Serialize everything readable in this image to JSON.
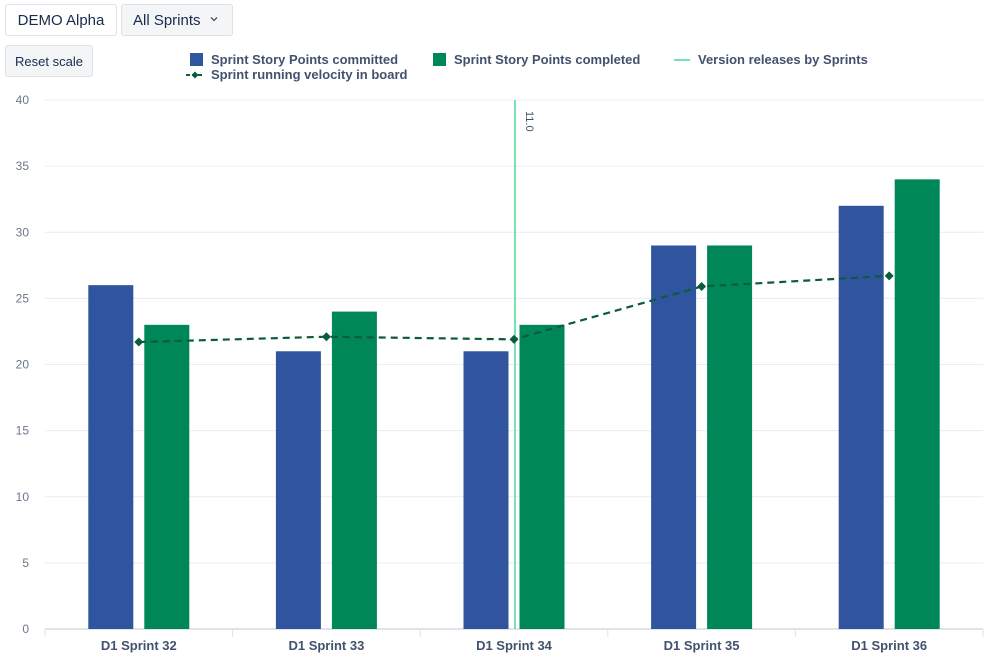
{
  "toolbar": {
    "board_label": "DEMO Alpha",
    "sprint_select_value": "All Sprints",
    "reset_label": "Reset scale"
  },
  "colors": {
    "committed": "#30559e",
    "completed": "#008758",
    "velocity": "#0b5b3f",
    "release": "#79e2b2"
  },
  "legend": [
    {
      "label": "Sprint Story Points committed",
      "kind": "square",
      "color": "#30559e"
    },
    {
      "label": "Sprint Story Points completed",
      "kind": "square",
      "color": "#008758"
    },
    {
      "label": "Version releases by Sprints",
      "kind": "line",
      "color": "#79e2b2"
    },
    {
      "label": "Sprint running velocity in board",
      "kind": "dashed-diamond",
      "color": "#0b5b3f"
    }
  ],
  "chart_data": {
    "type": "bar",
    "categories": [
      "D1 Sprint 32",
      "D1 Sprint 33",
      "D1 Sprint 34",
      "D1 Sprint 35",
      "D1 Sprint 36"
    ],
    "series": [
      {
        "name": "Sprint Story Points committed",
        "values": [
          26,
          21,
          21,
          29,
          32
        ]
      },
      {
        "name": "Sprint Story Points completed",
        "values": [
          23,
          24,
          23,
          29,
          34
        ]
      }
    ],
    "line_series": {
      "name": "Sprint running velocity in board",
      "values": [
        21.7,
        22.1,
        21.9,
        25.9,
        26.7
      ]
    },
    "releases": [
      {
        "label": "11.0",
        "category_index": 2
      }
    ],
    "ylim": [
      0,
      40
    ],
    "yticks": [
      0,
      5,
      10,
      15,
      20,
      25,
      30,
      35,
      40
    ],
    "grid": true,
    "legend_position": "top"
  }
}
